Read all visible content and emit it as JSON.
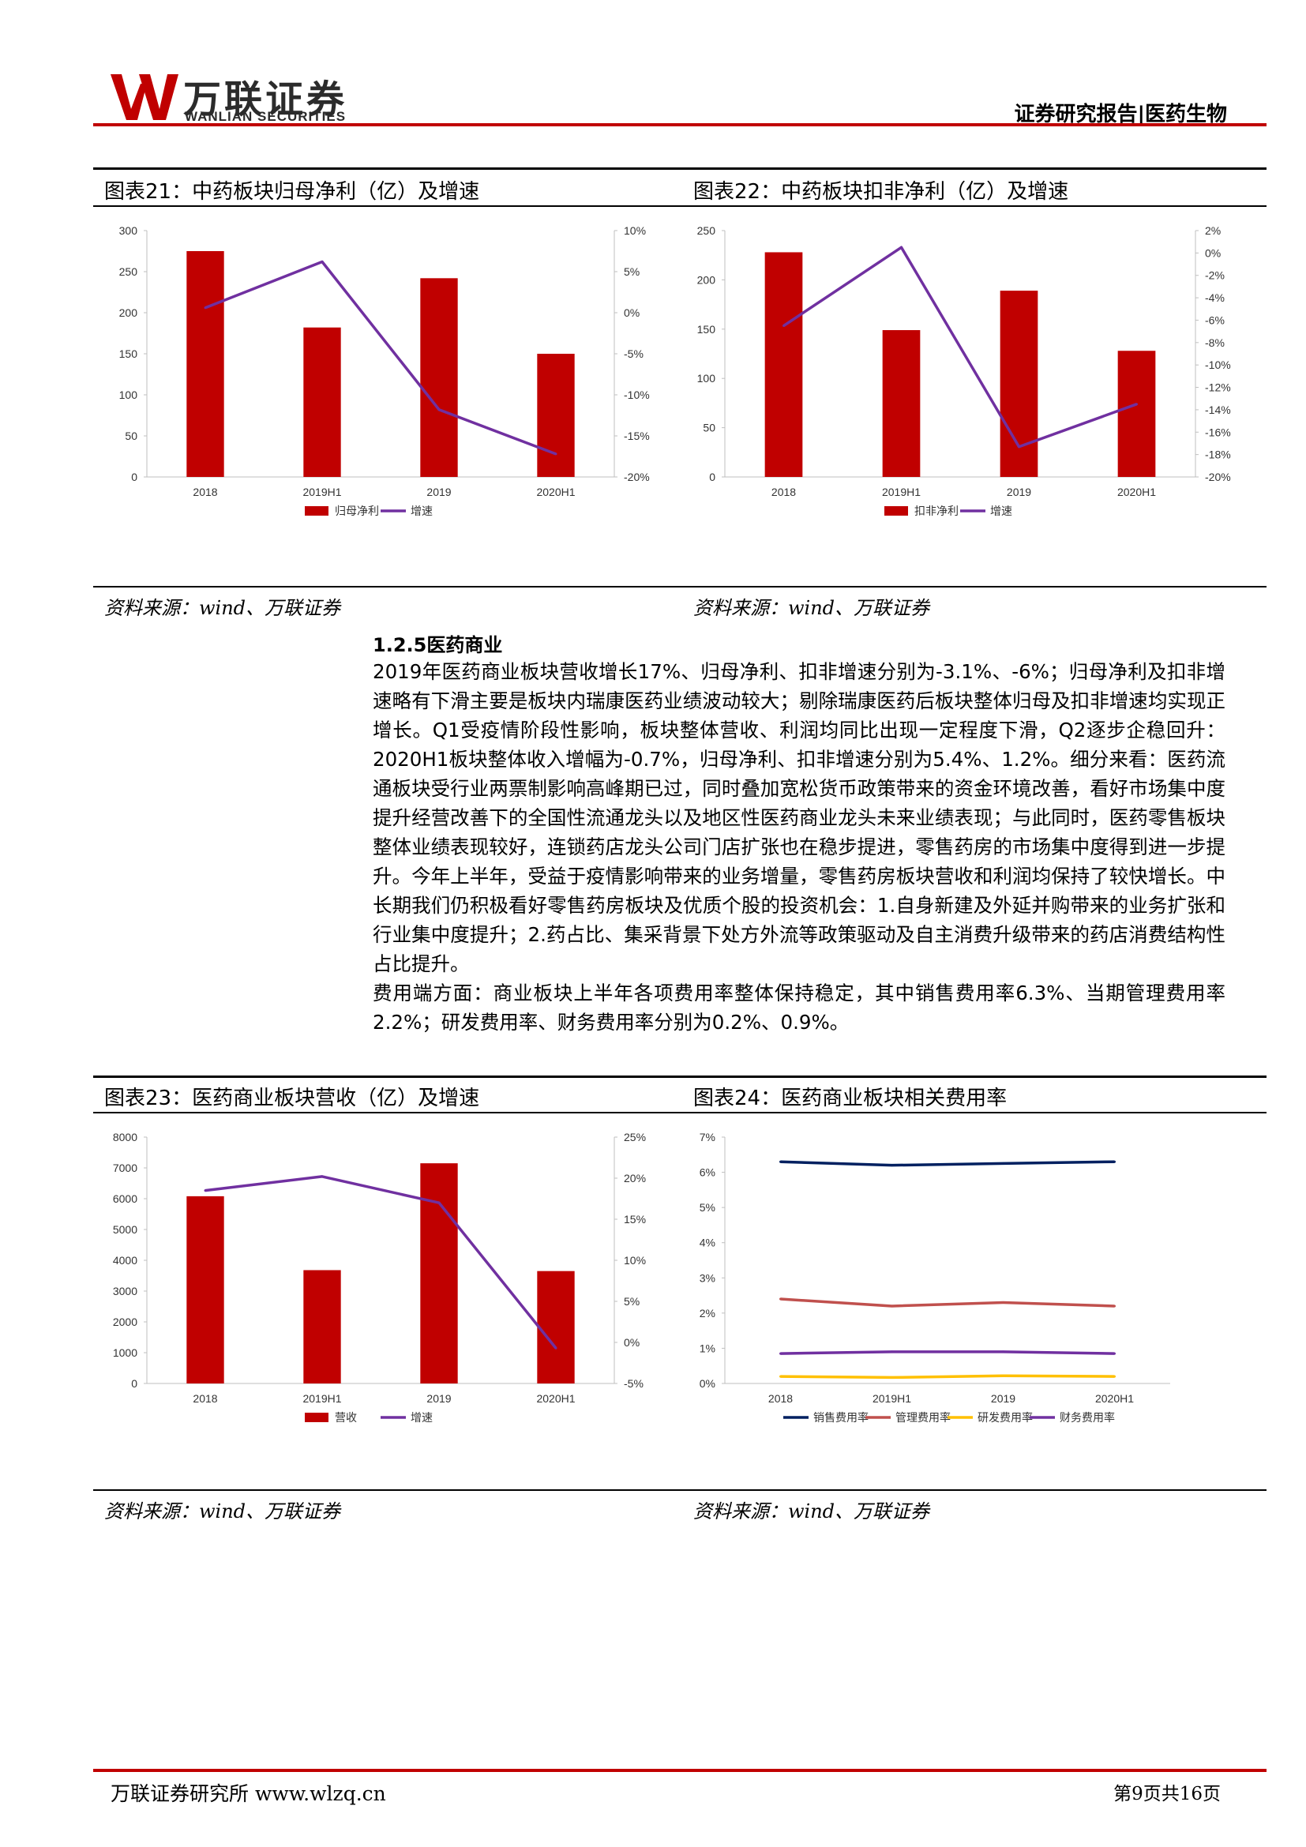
{
  "header": {
    "logo_cn": "万联证券",
    "logo_en": "WANLIAN SECURITIES",
    "report_type": "证券研究报告|医药生物"
  },
  "figures": {
    "fig21": {
      "title": "图表21：中药板块归母净利（亿）及增速",
      "source": "资料来源：wind、万联证券"
    },
    "fig22": {
      "title": "图表22：中药板块扣非净利（亿）及增速",
      "source": "资料来源：wind、万联证券"
    },
    "fig23": {
      "title": "图表23：医药商业板块营收（亿）及增速",
      "source": "资料来源：wind、万联证券"
    },
    "fig24": {
      "title": "图表24：医药商业板块相关费用率",
      "source": "资料来源：wind、万联证券"
    }
  },
  "section": {
    "title": "1.2.5医药商业",
    "paragraphs": [
      "2019年医药商业板块营收增长17%、归母净利、扣非增速分别为-3.1%、-6%；归母净利及扣非增速略有下滑主要是板块内瑞康医药业绩波动较大；剔除瑞康医药后板块整体归母及扣非增速均实现正增长。Q1受疫情阶段性影响，板块整体营收、利润均同比出现一定程度下滑，Q2逐步企稳回升：2020H1板块整体收入增幅为-0.7%，归母净利、扣非增速分别为5.4%、1.2%。细分来看：医药流通板块受行业两票制影响高峰期已过，同时叠加宽松货币政策带来的资金环境改善，看好市场集中度提升经营改善下的全国性流通龙头以及地区性医药商业龙头未来业绩表现；与此同时，医药零售板块整体业绩表现较好，连锁药店龙头公司门店扩张也在稳步提进，零售药房的市场集中度得到进一步提升。今年上半年，受益于疫情影响带来的业务增量，零售药房板块营收和利润均保持了较快增长。中长期我们仍积极看好零售药房板块及优质个股的投资机会：1.自身新建及外延并购带来的业务扩张和行业集中度提升；2.药占比、集采背景下处方外流等政策驱动及自主消费升级带来的药店消费结构性占比提升。",
      "费用端方面：商业板块上半年各项费用率整体保持稳定，其中销售费用率6.3%、当期管理费用率2.2%；研发费用率、财务费用率分别为0.2%、0.9%。"
    ]
  },
  "footer": {
    "left": "万联证券研究所 www.wlzq.cn",
    "right": "第9页共16页"
  },
  "chart_data": [
    {
      "type": "bar+line",
      "categories": [
        "2018",
        "2019H1",
        "2019",
        "2020H1"
      ],
      "series": [
        {
          "name": "归母净利",
          "type": "bar",
          "axis": "left",
          "color": "#c00000",
          "values": [
            275,
            182,
            242,
            150
          ]
        },
        {
          "name": "增速",
          "type": "line",
          "axis": "right",
          "color": "#7030a0",
          "values": [
            0.6,
            6.2,
            -11.8,
            -17.2
          ]
        }
      ],
      "ylim_left": [
        0,
        300
      ],
      "yticks_left": [
        0,
        50,
        100,
        150,
        200,
        250,
        300
      ],
      "yticklabels_left": [
        "0",
        "50",
        "100",
        "150",
        "200",
        "250",
        "300"
      ],
      "ylim_right": [
        -20,
        10
      ],
      "yticks_right": [
        10,
        5,
        0,
        -5,
        -10,
        -15,
        -20
      ],
      "yticklabels_right": [
        "10%",
        "5%",
        "0%",
        "-5%",
        "-10%",
        "-15%",
        "-20%"
      ],
      "legend_position": "bottom"
    },
    {
      "type": "bar+line",
      "categories": [
        "2018",
        "2019H1",
        "2019",
        "2020H1"
      ],
      "series": [
        {
          "name": "扣非净利",
          "type": "bar",
          "axis": "left",
          "color": "#c00000",
          "values": [
            228,
            149,
            189,
            128
          ]
        },
        {
          "name": "增速",
          "type": "line",
          "axis": "right",
          "color": "#7030a0",
          "values": [
            -6.5,
            0.5,
            -17.3,
            -13.5
          ]
        }
      ],
      "ylim_left": [
        0,
        250
      ],
      "yticks_left": [
        0,
        50,
        100,
        150,
        200,
        250
      ],
      "yticklabels_left": [
        "0",
        "50",
        "100",
        "150",
        "200",
        "250"
      ],
      "ylim_right": [
        -20,
        2
      ],
      "yticks_right": [
        2,
        0,
        -2,
        -4,
        -6,
        -8,
        -10,
        -12,
        -14,
        -16,
        -18,
        -20
      ],
      "yticklabels_right": [
        "2%",
        "0%",
        "-2%",
        "-4%",
        "-6%",
        "-8%",
        "-10%",
        "-12%",
        "-14%",
        "-16%",
        "-18%",
        "-20%"
      ],
      "legend_position": "bottom"
    },
    {
      "type": "bar+line",
      "categories": [
        "2018",
        "2019H1",
        "2019",
        "2020H1"
      ],
      "series": [
        {
          "name": "营收",
          "type": "bar",
          "axis": "left",
          "color": "#c00000",
          "values": [
            6080,
            3680,
            7150,
            3650
          ]
        },
        {
          "name": "增速",
          "type": "line",
          "axis": "right",
          "color": "#7030a0",
          "values": [
            18.5,
            20.2,
            17.0,
            -0.7
          ]
        }
      ],
      "ylim_left": [
        0,
        8000
      ],
      "yticks_left": [
        0,
        1000,
        2000,
        3000,
        4000,
        5000,
        6000,
        7000,
        8000
      ],
      "yticklabels_left": [
        "0",
        "1000",
        "2000",
        "3000",
        "4000",
        "5000",
        "6000",
        "7000",
        "8000"
      ],
      "ylim_right": [
        -5,
        25
      ],
      "yticks_right": [
        25,
        20,
        15,
        10,
        5,
        0,
        -5
      ],
      "yticklabels_right": [
        "25%",
        "20%",
        "15%",
        "10%",
        "5%",
        "0%",
        "-5%"
      ],
      "legend_position": "bottom"
    },
    {
      "type": "line",
      "categories": [
        "2018",
        "2019H1",
        "2019",
        "2020H1"
      ],
      "series": [
        {
          "name": "销售费用率",
          "color": "#002060",
          "values": [
            6.3,
            6.2,
            6.25,
            6.3
          ]
        },
        {
          "name": "管理费用率",
          "color": "#c0504d",
          "values": [
            2.4,
            2.2,
            2.3,
            2.2
          ]
        },
        {
          "name": "研发费用率",
          "color": "#ffc000",
          "values": [
            0.2,
            0.17,
            0.22,
            0.2
          ]
        },
        {
          "name": "财务费用率",
          "color": "#7030a0",
          "values": [
            0.85,
            0.9,
            0.9,
            0.85
          ]
        }
      ],
      "ylim": [
        0,
        7
      ],
      "yticks": [
        0,
        1,
        2,
        3,
        4,
        5,
        6,
        7
      ],
      "yticklabels": [
        "0%",
        "1%",
        "2%",
        "3%",
        "4%",
        "5%",
        "6%",
        "7%"
      ],
      "legend_position": "bottom"
    }
  ]
}
